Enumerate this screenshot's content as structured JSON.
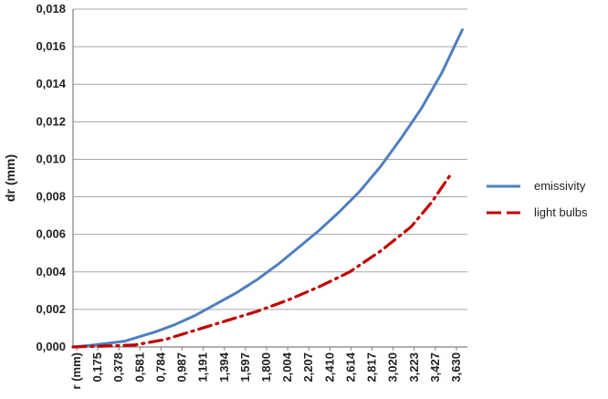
{
  "chart_data": {
    "type": "line",
    "title": "",
    "xlabel": "r (mm)",
    "ylabel": "dr (mm)",
    "ylim": [
      0,
      0.018
    ],
    "yticks": [
      "0,000",
      "0,002",
      "0,004",
      "0,006",
      "0,008",
      "0,010",
      "0,012",
      "0,014",
      "0,016",
      "0,018"
    ],
    "xtick_labels": [
      "r (mm)",
      "0,175",
      "0,378",
      "0,581",
      "0,784",
      "0,987",
      "1,191",
      "1,394",
      "1,597",
      "1,800",
      "2,004",
      "2,207",
      "2,410",
      "2,614",
      "2,817",
      "3,020",
      "3,223",
      "3,427",
      "3,630"
    ],
    "xlim": [
      0,
      3.85
    ],
    "grid": true,
    "legend_position": "right",
    "series": [
      {
        "name": "emissivity",
        "color": "#4f7fbf",
        "style": "solid",
        "points": [
          [
            0,
            0
          ],
          [
            0.2,
            0.0001
          ],
          [
            0.5,
            0.0003
          ],
          [
            0.8,
            0.0008
          ],
          [
            1.0,
            0.0012
          ],
          [
            1.2,
            0.0017
          ],
          [
            1.4,
            0.0023
          ],
          [
            1.6,
            0.0029
          ],
          [
            1.8,
            0.0036
          ],
          [
            2.0,
            0.0044
          ],
          [
            2.2,
            0.0053
          ],
          [
            2.4,
            0.0062
          ],
          [
            2.6,
            0.0072
          ],
          [
            2.8,
            0.0083
          ],
          [
            3.0,
            0.0096
          ],
          [
            3.2,
            0.0111
          ],
          [
            3.4,
            0.0127
          ],
          [
            3.6,
            0.0146
          ],
          [
            3.8,
            0.0169
          ]
        ]
      },
      {
        "name": "light bulbs",
        "color": "#c00000",
        "style": "dash-dot",
        "points": [
          [
            0,
            0
          ],
          [
            0.3,
            5e-05
          ],
          [
            0.6,
            0.0001
          ],
          [
            0.9,
            0.0004
          ],
          [
            1.2,
            0.0009
          ],
          [
            1.5,
            0.0014
          ],
          [
            1.8,
            0.0019
          ],
          [
            2.1,
            0.0025
          ],
          [
            2.4,
            0.0032
          ],
          [
            2.7,
            0.004
          ],
          [
            3.0,
            0.0051
          ],
          [
            3.3,
            0.0064
          ],
          [
            3.5,
            0.0077
          ],
          [
            3.7,
            0.0093
          ]
        ]
      }
    ]
  }
}
